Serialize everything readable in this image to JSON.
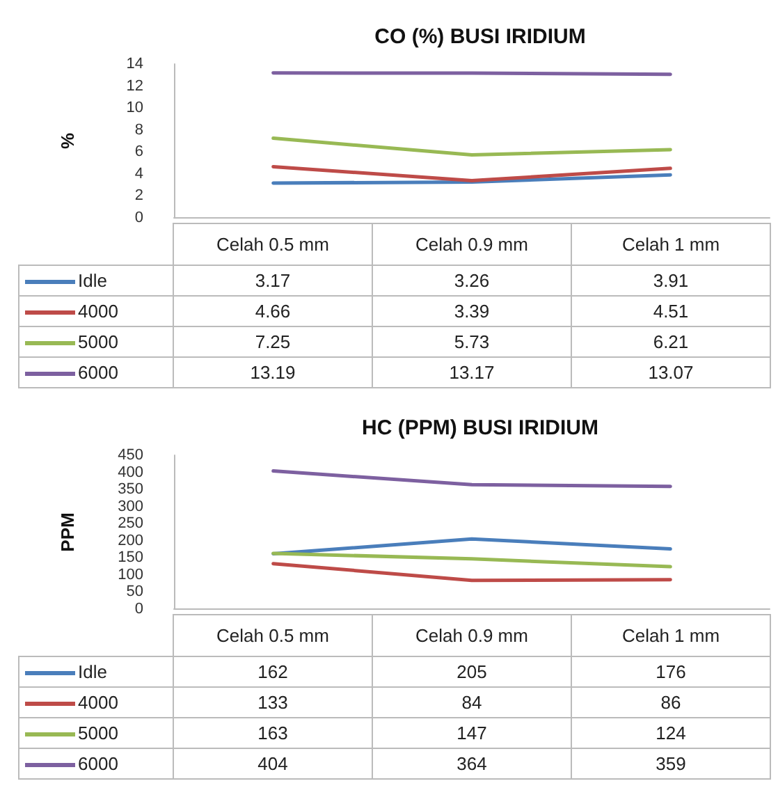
{
  "chart_data": [
    {
      "type": "line",
      "title": "CO (%) BUSI IRIDIUM",
      "ylabel": "%",
      "categories": [
        "Celah 0.5 mm",
        "Celah 0.9 mm",
        "Celah 1 mm"
      ],
      "series": [
        {
          "name": "Idle",
          "color": "#4a7ebb",
          "values": [
            3.17,
            3.26,
            3.91
          ]
        },
        {
          "name": "4000",
          "color": "#be4b48",
          "values": [
            4.66,
            3.39,
            4.51
          ]
        },
        {
          "name": "5000",
          "color": "#98b954",
          "values": [
            7.25,
            5.73,
            6.21
          ]
        },
        {
          "name": "6000",
          "color": "#7d60a0",
          "values": [
            13.19,
            13.17,
            13.07
          ]
        }
      ],
      "ylim": [
        0,
        14
      ],
      "yticks": [
        0,
        2,
        4,
        6,
        8,
        10,
        12,
        14
      ],
      "grid": false,
      "legend": "bottom left",
      "marker": "none",
      "line_style": "solid",
      "data_labels": true
    },
    {
      "type": "line",
      "title": "HC (PPM) BUSI IRIDIUM",
      "ylabel": "PPM",
      "categories": [
        "Celah 0.5 mm",
        "Celah 0.9 mm",
        "Celah 1 mm"
      ],
      "series": [
        {
          "name": "Idle",
          "color": "#4a7ebb",
          "values": [
            162,
            205,
            176
          ]
        },
        {
          "name": "4000",
          "color": "#be4b48",
          "values": [
            133,
            84,
            86
          ]
        },
        {
          "name": "5000",
          "color": "#98b954",
          "values": [
            163,
            147,
            124
          ]
        },
        {
          "name": "6000",
          "color": "#7d60a0",
          "values": [
            404,
            364,
            359
          ]
        }
      ],
      "ylim": [
        0,
        450
      ],
      "yticks": [
        0,
        50,
        100,
        150,
        200,
        250,
        300,
        350,
        400,
        450
      ],
      "grid": false,
      "legend": "bottom left",
      "marker": "none",
      "line_style": "solid",
      "data_labels": true
    }
  ]
}
